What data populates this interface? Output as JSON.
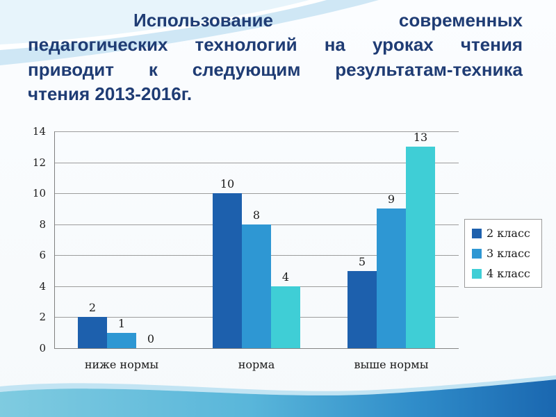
{
  "slide": {
    "title": "Использование современных педагогических технологий на уроках чтения приводит к следующим результатам-техника чтения 2013-2016г.",
    "title_lines": [
      "Использование современных",
      "педагогических технологий на уроках чтения",
      "приводит к следующим результатам-техника",
      "чтения 2013-2016г."
    ]
  },
  "chart_data": {
    "type": "bar",
    "title": "",
    "categories": [
      "ниже нормы",
      "норма",
      "выше нормы"
    ],
    "series": [
      {
        "name": "2 класс",
        "color": "#1d60ad",
        "values": [
          2,
          10,
          5
        ]
      },
      {
        "name": "3 класс",
        "color": "#2e97d3",
        "values": [
          1,
          8,
          9
        ]
      },
      {
        "name": "4 класс",
        "color": "#3fced6",
        "values": [
          0,
          4,
          13
        ]
      }
    ],
    "ylim": [
      0,
      14
    ],
    "yticks": [
      0,
      2,
      4,
      6,
      8,
      10,
      12,
      14
    ],
    "grid": true,
    "legend_position": "right",
    "data_labels": true
  },
  "colors": {
    "title_text": "#1f3c74",
    "gridline": "#9c9c9c",
    "wave_top": "#cfe7f5",
    "wave_bottom_start": "#7fcbe0",
    "wave_bottom_end": "#1a67b0"
  }
}
